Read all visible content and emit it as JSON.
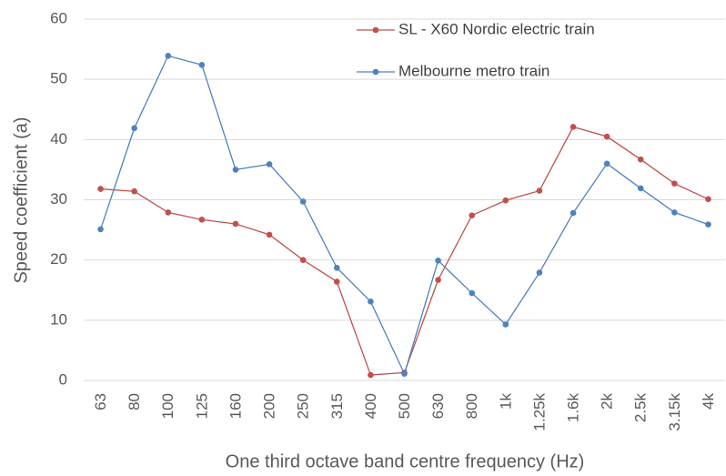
{
  "chart_data": {
    "type": "line",
    "x_label": "One third octave band centre frequency (Hz)",
    "y_label": "Speed coefficient (a)",
    "categories": [
      "63",
      "80",
      "100",
      "125",
      "160",
      "200",
      "250",
      "315",
      "400",
      "500",
      "630",
      "800",
      "1k",
      "1.25k",
      "1.6k",
      "2k",
      "2.5k",
      "3.15k",
      "4k"
    ],
    "series": [
      {
        "name": "SL - X60 Nordic electric train",
        "color": "#c0504d",
        "values": [
          31.8,
          31.4,
          27.9,
          26.7,
          26.0,
          24.2,
          20.0,
          16.4,
          0.9,
          1.3,
          16.7,
          27.4,
          29.9,
          31.5,
          42.1,
          40.5,
          36.7,
          32.7,
          30.1
        ]
      },
      {
        "name": "Melbourne metro train",
        "color": "#4f81bd",
        "values": [
          25.1,
          41.9,
          53.9,
          52.4,
          35.0,
          35.9,
          29.7,
          18.7,
          13.1,
          1.1,
          19.9,
          14.5,
          9.3,
          17.9,
          27.8,
          36.0,
          31.9,
          27.9,
          25.9
        ]
      }
    ],
    "ylim": [
      0,
      60
    ],
    "yticks": [
      0,
      10,
      20,
      30,
      40,
      50,
      60
    ],
    "grid": true,
    "legend": "upper-right"
  }
}
